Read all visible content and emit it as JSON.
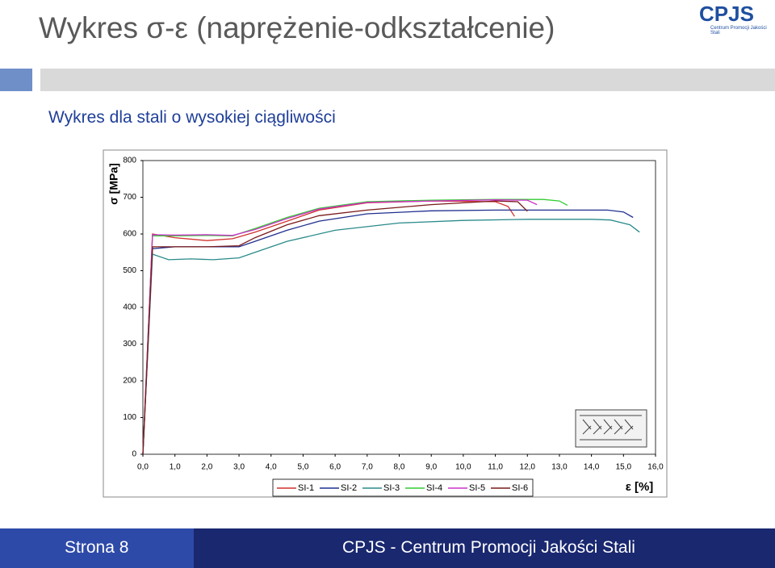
{
  "slide": {
    "title": "Wykres σ-ε (naprężenie-odkształcenie)",
    "subtitle": "Wykres dla stali o wysokiej ciągliwości",
    "logo": "CPJS",
    "logo_sub": "Centrum Promocji Jakości Stali",
    "page": "Strona 8",
    "footer": "CPJS - Centrum Promocji Jakości Stali"
  },
  "chart_data": {
    "type": "line",
    "y_label": "σ [MPa]",
    "x_label": "ε [%]",
    "xlim": [
      0,
      16
    ],
    "ylim": [
      0,
      800
    ],
    "xticks": [
      {
        "value": 0,
        "label": "0,0"
      },
      {
        "value": 1,
        "label": "1,0"
      },
      {
        "value": 2,
        "label": "2,0"
      },
      {
        "value": 3,
        "label": "3,0"
      },
      {
        "value": 4,
        "label": "4,0"
      },
      {
        "value": 5,
        "label": "5,0"
      },
      {
        "value": 6,
        "label": "6,0"
      },
      {
        "value": 7,
        "label": "7,0"
      },
      {
        "value": 8,
        "label": "8,0"
      },
      {
        "value": 9,
        "label": "9,0"
      },
      {
        "value": 10,
        "label": "10,0"
      },
      {
        "value": 11,
        "label": "11,0"
      },
      {
        "value": 12,
        "label": "12,0"
      },
      {
        "value": 13,
        "label": "13,0"
      },
      {
        "value": 14,
        "label": "14,0"
      },
      {
        "value": 15,
        "label": "15,0"
      },
      {
        "value": 16,
        "label": "16,0"
      }
    ],
    "yticks": [
      0,
      100,
      200,
      300,
      400,
      500,
      600,
      700,
      800
    ],
    "grid": false,
    "legend": "bottom",
    "series": [
      {
        "name": "SI-1",
        "color": "#d0312d",
        "x": [
          0,
          0.3,
          1,
          2,
          2.8,
          3.5,
          4.5,
          5.5,
          7,
          9,
          11,
          11.4,
          11.6
        ],
        "values": [
          0,
          600,
          590,
          582,
          587,
          605,
          635,
          665,
          685,
          690,
          688,
          675,
          648
        ]
      },
      {
        "name": "SI-2",
        "color": "#1f2f8f",
        "x": [
          0,
          0.3,
          1,
          2,
          3,
          3.5,
          4.5,
          5.5,
          7,
          9,
          11,
          13,
          14.5,
          15,
          15.3
        ],
        "values": [
          0,
          560,
          565,
          565,
          565,
          580,
          610,
          635,
          655,
          663,
          665,
          665,
          665,
          660,
          645
        ]
      },
      {
        "name": "SI-3",
        "color": "#2a8a8a",
        "x": [
          0,
          0.3,
          0.8,
          1.5,
          2.2,
          3,
          3.5,
          4.5,
          6,
          8,
          10,
          12,
          14,
          14.6,
          15.2,
          15.5
        ],
        "values": [
          0,
          545,
          530,
          532,
          530,
          535,
          550,
          580,
          610,
          630,
          637,
          640,
          640,
          638,
          625,
          605
        ]
      },
      {
        "name": "SI-4",
        "color": "#33cc33",
        "x": [
          0,
          0.3,
          1,
          2,
          2.8,
          3.5,
          4.5,
          5.5,
          7,
          9,
          11,
          12.5,
          13,
          13.25
        ],
        "values": [
          0,
          595,
          595,
          596,
          595,
          615,
          645,
          670,
          688,
          692,
          694,
          694,
          690,
          678
        ]
      },
      {
        "name": "SI-5",
        "color": "#cc33cc",
        "x": [
          0,
          0.3,
          1,
          2,
          2.8,
          3.5,
          4.5,
          5.5,
          7,
          9,
          11,
          12,
          12.3
        ],
        "values": [
          0,
          598,
          597,
          598,
          596,
          612,
          642,
          668,
          686,
          690,
          693,
          692,
          680
        ]
      },
      {
        "name": "SI-6",
        "color": "#7a1a1a",
        "x": [
          0,
          0.3,
          1,
          2,
          3,
          3.5,
          4.5,
          5.5,
          7,
          9,
          11,
          11.7,
          12
        ],
        "values": [
          0,
          565,
          565,
          565,
          568,
          590,
          625,
          650,
          665,
          680,
          690,
          688,
          662
        ]
      }
    ]
  }
}
